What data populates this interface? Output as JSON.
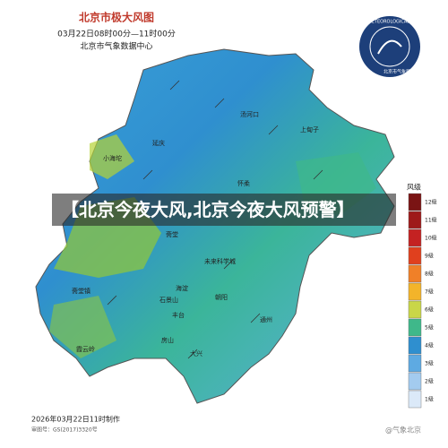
{
  "header": {
    "title": "北京市极大风图",
    "time_range": "03月22日08时00分—11时00分",
    "source": "北京市气象数据中心"
  },
  "logo": {
    "name_en": "BEIJING METEOROLOGICAL SERVICE",
    "name_cn": "北京市气象局"
  },
  "caption": "【北京今夜大风,北京今夜大风预警】",
  "places": [
    "汤河口",
    "小海坨",
    "延庆",
    "上甸子",
    "怀柔",
    "斋堂",
    "未来科学城",
    "海淀",
    "朝阳",
    "石景山",
    "丰台",
    "斋堂镇",
    "房山",
    "大兴",
    "通州",
    "霞云岭"
  ],
  "legend": {
    "title": "风级",
    "items": [
      {
        "label": "12级",
        "color": "#7a1414"
      },
      {
        "label": "11级",
        "color": "#9e1a1a"
      },
      {
        "label": "10级",
        "color": "#c42222"
      },
      {
        "label": "9级",
        "color": "#e0401e"
      },
      {
        "label": "8级",
        "color": "#f08028"
      },
      {
        "label": "7级",
        "color": "#f3b42a"
      },
      {
        "label": "6级",
        "color": "#c9d648"
      },
      {
        "label": "5级",
        "color": "#3fb88a"
      },
      {
        "label": "4级",
        "color": "#2f8fcf"
      },
      {
        "label": "3级",
        "color": "#5eaae2"
      },
      {
        "label": "2级",
        "color": "#a3cbef"
      },
      {
        "label": "1级",
        "color": "#dbe9f8"
      }
    ]
  },
  "footer": {
    "made": "2026年03月22日11时制作",
    "approval": "审图号：GS(2017)3320号",
    "watermark": "@气象北京"
  }
}
